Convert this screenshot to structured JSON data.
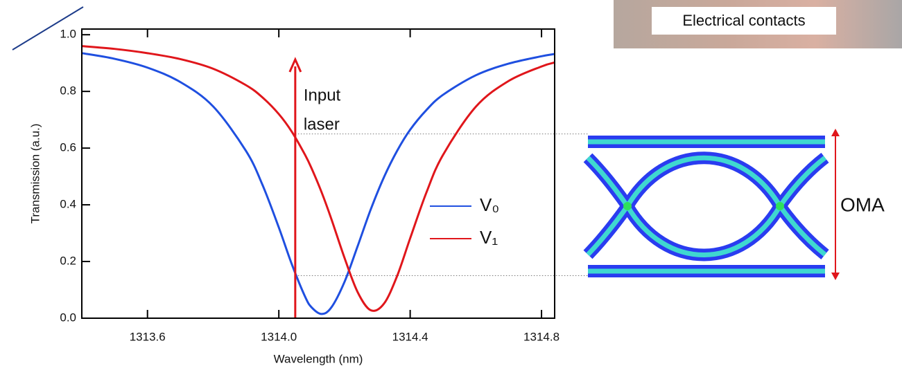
{
  "chart_data": {
    "type": "line",
    "x_label": "Wavelength (nm)",
    "y_label": "Transmission (a.u.)",
    "x": [
      1313.4,
      1313.5,
      1313.6,
      1313.7,
      1313.8,
      1313.9,
      1313.95,
      1314.0,
      1314.04,
      1314.08,
      1314.1,
      1314.13,
      1314.16,
      1314.2,
      1314.24,
      1314.28,
      1314.32,
      1314.36,
      1314.4,
      1314.45,
      1314.5,
      1314.6,
      1314.7,
      1314.8,
      1314.84
    ],
    "series": [
      {
        "name": "V₀",
        "color": "#1f4fe0",
        "values": [
          0.935,
          0.915,
          0.884,
          0.833,
          0.747,
          0.59,
          0.471,
          0.32,
          0.189,
          0.076,
          0.038,
          0.015,
          0.038,
          0.128,
          0.254,
          0.384,
          0.497,
          0.59,
          0.665,
          0.735,
          0.788,
          0.857,
          0.898,
          0.924,
          0.932
        ]
      },
      {
        "name": "V₁",
        "color": "#e0161b",
        "values": [
          0.96,
          0.95,
          0.935,
          0.914,
          0.88,
          0.822,
          0.779,
          0.72,
          0.657,
          0.576,
          0.528,
          0.445,
          0.35,
          0.213,
          0.092,
          0.028,
          0.051,
          0.148,
          0.282,
          0.445,
          0.576,
          0.746,
          0.837,
          0.888,
          0.902
        ]
      }
    ],
    "xlim": [
      1313.4,
      1314.84
    ],
    "ylim": [
      0,
      1.02
    ],
    "xticks": [
      1313.6,
      {
        "value": 1314.0,
        "label": "1314.0"
      },
      1314.4,
      1314.8
    ],
    "yticks": [
      {
        "value": 0,
        "label": "0.0"
      },
      0.2,
      0.4,
      0.6,
      0.8,
      {
        "value": 1,
        "label": "1.0"
      }
    ],
    "input_laser": {
      "label": [
        "Input",
        "laser"
      ],
      "x": 1314.05,
      "color": "#e0161b"
    },
    "oma_levels": [
      0.65,
      0.15
    ],
    "oma_label": "OMA",
    "contacts_label": "Electrical contacts"
  }
}
